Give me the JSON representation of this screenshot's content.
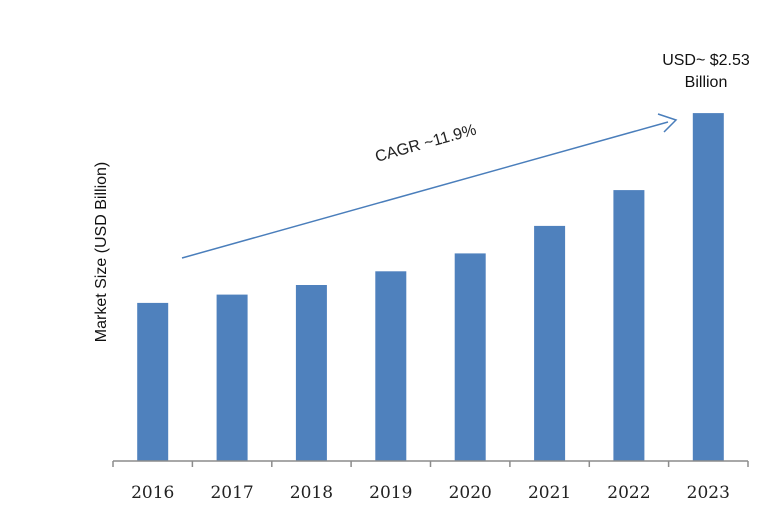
{
  "chart_data": {
    "type": "bar",
    "categories": [
      "2016",
      "2017",
      "2018",
      "2019",
      "2020",
      "2021",
      "2022",
      "2023"
    ],
    "values": [
      1.15,
      1.21,
      1.28,
      1.38,
      1.51,
      1.71,
      1.97,
      2.53
    ],
    "ylabel": "Market Size (USD Billion)",
    "xlabel": "",
    "ylim": [
      0,
      2.8
    ],
    "grid": false,
    "legend": "none",
    "annotations": {
      "cagr": "CAGR ~11.9%",
      "last_value_line1": "USD~ $2.53",
      "last_value_line2": "Billion"
    },
    "colors": {
      "bar": "#4f81bd",
      "arrow": "#4a7ebb",
      "axis": "#8c8c8c"
    }
  }
}
